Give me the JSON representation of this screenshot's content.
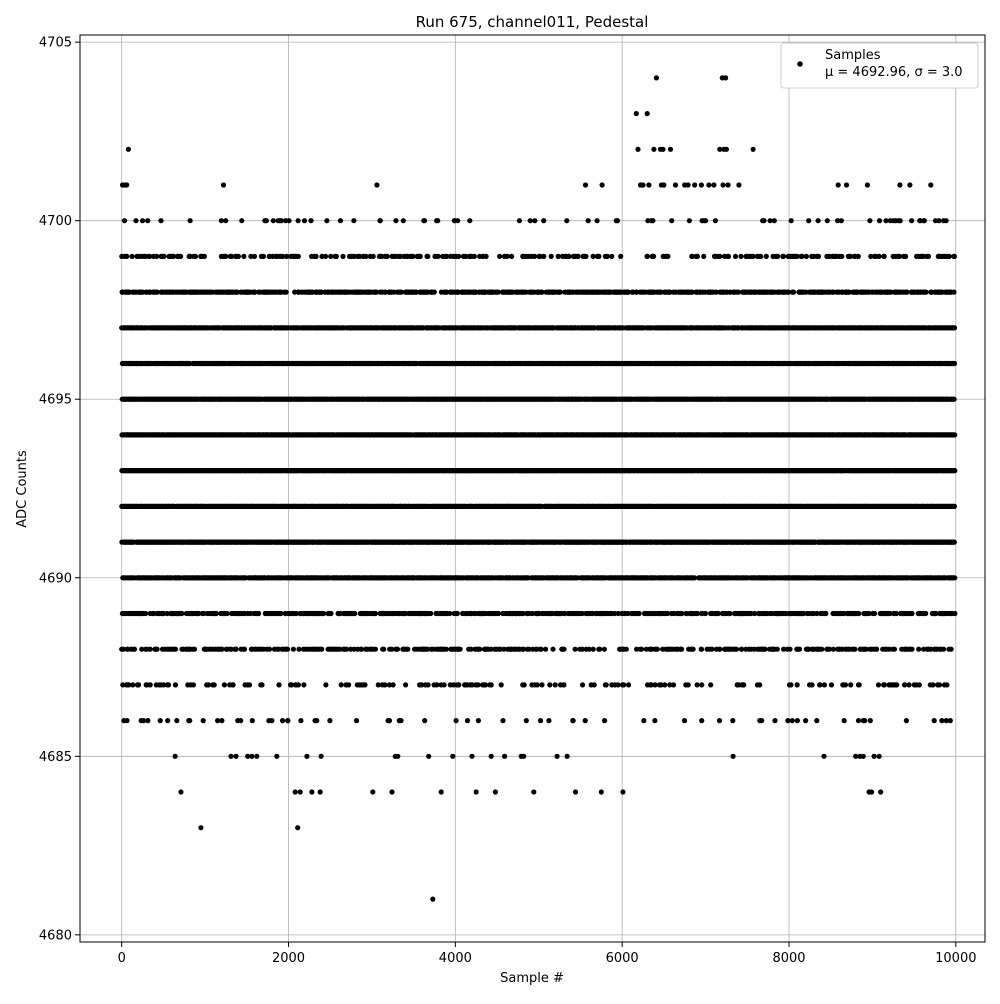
{
  "chart_data": {
    "type": "scatter",
    "title": "Run 675, channel011, Pedestal",
    "xlabel": "Sample #",
    "ylabel": "ADC Counts",
    "xlim": [
      -500,
      10350
    ],
    "ylim": [
      4679.8,
      4705.2
    ],
    "xticks": [
      0,
      2000,
      4000,
      6000,
      8000,
      10000
    ],
    "yticks": [
      4680,
      4685,
      4690,
      4695,
      4700,
      4705
    ],
    "grid": true,
    "legend_placement": "top-right",
    "series": [
      {
        "name": "Samples",
        "legend_stats": "μ = 4692.96, σ = 3.0",
        "color": "#000000",
        "n_samples": 10000,
        "levels": [
          4681,
          4683,
          4684,
          4685,
          4686,
          4687,
          4688,
          4689,
          4690,
          4691,
          4692,
          4693,
          4694,
          4695,
          4696,
          4697,
          4698,
          4699,
          4700,
          4701,
          4702,
          4703,
          4704
        ],
        "level_points": {
          "4681": [
            3730
          ],
          "4683": [
            950,
            2110
          ],
          "4684": [
            710,
            2080,
            2140,
            2280,
            2380,
            3010,
            3240,
            3830,
            4250,
            4480,
            4940,
            5440,
            5750,
            6010,
            8960,
            8990,
            9100
          ],
          "4685": [
            640,
            1310,
            1370,
            1510,
            1560,
            1620,
            1860,
            2220,
            2390,
            3280,
            3310,
            3680,
            3970,
            4200,
            4430,
            4590,
            4790,
            4820,
            5220,
            5340,
            7330,
            8420,
            8800,
            8850,
            8890,
            9020,
            9080
          ],
          "4704": [
            6410,
            7200,
            7240
          ],
          "4703": [
            6170,
            6300
          ],
          "4702": [
            80,
            6190,
            6380,
            6460,
            6490,
            6580,
            7170,
            7220,
            7250,
            7570
          ],
          "4701": [
            10,
            40,
            60,
            1220,
            3060,
            5560,
            5760,
            6220,
            6250,
            6320,
            6470,
            6500,
            6640,
            6750,
            6790,
            6870,
            6950,
            7040,
            7100,
            7210,
            7270,
            7400,
            8590,
            8690,
            8940,
            9330,
            9450,
            9700
          ]
        },
        "band_levels": [
          4686,
          4687,
          4688,
          4689,
          4690,
          4691,
          4692,
          4693,
          4694,
          4695,
          4696,
          4697,
          4698,
          4699,
          4700
        ],
        "band_density": [
          0.06,
          0.14,
          0.35,
          0.5,
          0.85,
          0.92,
          0.97,
          0.98,
          0.98,
          0.97,
          0.92,
          0.85,
          0.55,
          0.22,
          0.08
        ]
      }
    ]
  }
}
